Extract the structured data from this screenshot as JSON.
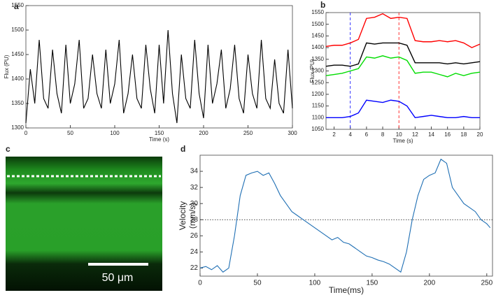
{
  "chart_data": [
    {
      "type": "line",
      "panel_label": "a",
      "xlabel": "Time (s)",
      "ylabel": "Flux (PU)",
      "xlim": [
        0,
        300
      ],
      "ylim": [
        1300,
        1550
      ],
      "xticks": [
        0,
        50,
        100,
        150,
        200,
        250,
        300
      ],
      "yticks": [
        1300,
        1350,
        1400,
        1450,
        1500,
        1550
      ],
      "x": [
        0,
        5,
        10,
        15,
        20,
        25,
        30,
        35,
        40,
        45,
        50,
        55,
        60,
        65,
        70,
        75,
        80,
        85,
        90,
        95,
        100,
        105,
        110,
        115,
        120,
        125,
        130,
        135,
        140,
        145,
        150,
        155,
        160,
        165,
        170,
        175,
        180,
        185,
        190,
        195,
        200,
        205,
        210,
        215,
        220,
        225,
        230,
        235,
        240,
        245,
        250,
        255,
        260,
        265,
        270,
        275,
        280,
        285,
        290,
        295,
        300
      ],
      "series": [
        {
          "color": "#000000",
          "values": [
            1310,
            1420,
            1350,
            1480,
            1360,
            1340,
            1460,
            1370,
            1330,
            1470,
            1350,
            1390,
            1480,
            1340,
            1360,
            1450,
            1370,
            1340,
            1460,
            1350,
            1390,
            1480,
            1330,
            1370,
            1450,
            1360,
            1340,
            1470,
            1380,
            1330,
            1470,
            1350,
            1500,
            1370,
            1310,
            1450,
            1360,
            1340,
            1480,
            1370,
            1320,
            1470,
            1350,
            1390,
            1460,
            1340,
            1380,
            1470,
            1360,
            1330,
            1450,
            1370,
            1340,
            1480,
            1360,
            1340,
            1440,
            1350,
            1330,
            1460,
            1340
          ]
        }
      ]
    },
    {
      "type": "line",
      "panel_label": "b",
      "xlabel": "Time (s)",
      "ylabel": "Flux (PU)",
      "xlim": [
        1,
        20
      ],
      "ylim": [
        1050,
        1550
      ],
      "xticks": [
        2,
        4,
        6,
        8,
        10,
        12,
        14,
        16,
        18,
        20
      ],
      "yticks": [
        1050,
        1100,
        1150,
        1200,
        1250,
        1300,
        1350,
        1400,
        1450,
        1500,
        1550
      ],
      "vlines": [
        {
          "x": 4,
          "color": "#0000ff"
        },
        {
          "x": 10,
          "color": "#ff0000"
        }
      ],
      "x": [
        1,
        2,
        3,
        4,
        5,
        6,
        7,
        8,
        9,
        10,
        11,
        12,
        13,
        14,
        15,
        16,
        17,
        18,
        19,
        20
      ],
      "series": [
        {
          "color": "#ff0000",
          "values": [
            1405,
            1410,
            1410,
            1420,
            1435,
            1525,
            1530,
            1545,
            1525,
            1530,
            1525,
            1430,
            1425,
            1425,
            1430,
            1425,
            1430,
            1420,
            1400,
            1415
          ]
        },
        {
          "color": "#000000",
          "values": [
            1320,
            1325,
            1325,
            1320,
            1330,
            1420,
            1415,
            1420,
            1420,
            1420,
            1410,
            1335,
            1335,
            1335,
            1335,
            1330,
            1335,
            1330,
            1335,
            1340
          ]
        },
        {
          "color": "#00dd00",
          "values": [
            1280,
            1285,
            1290,
            1300,
            1310,
            1360,
            1355,
            1365,
            1355,
            1360,
            1345,
            1290,
            1295,
            1295,
            1285,
            1275,
            1290,
            1280,
            1290,
            1295
          ]
        },
        {
          "color": "#0000ff",
          "values": [
            1100,
            1100,
            1100,
            1105,
            1120,
            1175,
            1170,
            1165,
            1175,
            1170,
            1150,
            1100,
            1105,
            1110,
            1105,
            1100,
            1100,
            1105,
            1100,
            1100
          ]
        }
      ]
    },
    {
      "type": "line",
      "panel_label": "d",
      "xlabel": "Time(ms)",
      "ylabel_lines": [
        "Velocity",
        "(mm/s)"
      ],
      "xlim": [
        0,
        255
      ],
      "ylim": [
        21,
        36
      ],
      "xticks": [
        0,
        50,
        100,
        150,
        200,
        250
      ],
      "yticks": [
        22,
        24,
        26,
        28,
        30,
        32,
        34
      ],
      "hlines": [
        {
          "y": 28,
          "color": "#333333"
        }
      ],
      "x": [
        0,
        5,
        10,
        15,
        20,
        25,
        30,
        35,
        40,
        45,
        50,
        55,
        60,
        65,
        70,
        75,
        80,
        85,
        90,
        95,
        100,
        105,
        110,
        115,
        120,
        125,
        130,
        135,
        140,
        145,
        150,
        155,
        160,
        165,
        170,
        175,
        180,
        185,
        190,
        195,
        200,
        205,
        210,
        215,
        220,
        225,
        230,
        235,
        240,
        245,
        250,
        253
      ],
      "series": [
        {
          "color": "#1f6fb4",
          "values": [
            22,
            22.2,
            21.8,
            22.3,
            21.5,
            22,
            26,
            31,
            33.5,
            33.8,
            34,
            33.5,
            33.8,
            32.5,
            31,
            30,
            29,
            28.5,
            28,
            27.5,
            27,
            26.5,
            26,
            25.5,
            25.8,
            25.2,
            25,
            24.5,
            24,
            23.5,
            23.3,
            23,
            22.8,
            22.5,
            22,
            21.5,
            24,
            28,
            31,
            33,
            33.5,
            33.8,
            35.5,
            35,
            32,
            31,
            30,
            29.5,
            29,
            28,
            27.5,
            27
          ]
        }
      ]
    }
  ],
  "panel_c": {
    "panel_label": "c",
    "scale_bar": "50 μm"
  }
}
